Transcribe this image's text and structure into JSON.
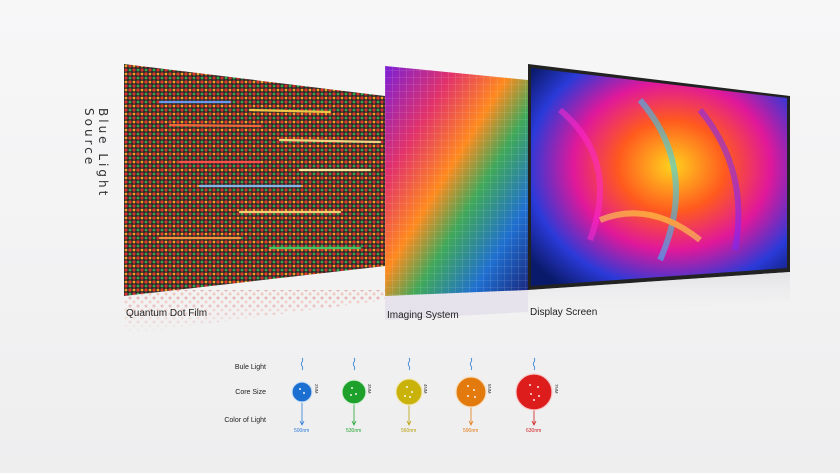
{
  "side_label": "Blue Light Source",
  "panels": {
    "film_caption": "Quantum Dot Film",
    "imaging_caption": "Imaging System",
    "display_caption": "Display Screen"
  },
  "legend": {
    "row1": "Bule Light",
    "row2": "Core Size",
    "row3": "Color of Light",
    "items": [
      {
        "size": "2NM",
        "wavelength": "500nm",
        "color": "#1b6fd0",
        "text_color": "#2a7ad8"
      },
      {
        "size": "3NM",
        "wavelength": "530nm",
        "color": "#1ea12a",
        "text_color": "#23a531"
      },
      {
        "size": "4NM",
        "wavelength": "560nm",
        "color": "#c9b20a",
        "text_color": "#b7a00a"
      },
      {
        "size": "5NM",
        "wavelength": "590nm",
        "color": "#e27a0d",
        "text_color": "#e17a12"
      },
      {
        "size": "7NM",
        "wavelength": "630nm",
        "color": "#dd1c1c",
        "text_color": "#d11b1b"
      }
    ]
  }
}
